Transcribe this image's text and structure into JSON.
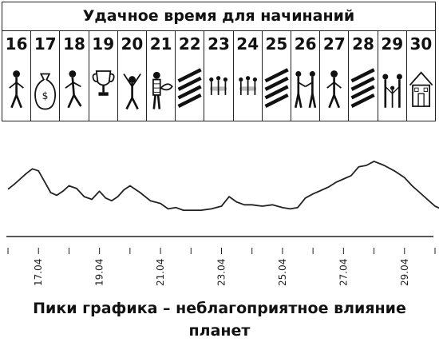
{
  "calendar": {
    "title": "Удачное время для начинаний",
    "days": [
      {
        "num": "16",
        "icon": "person-icon"
      },
      {
        "num": "17",
        "icon": "money-bag-icon"
      },
      {
        "num": "18",
        "icon": "person-walking-icon"
      },
      {
        "num": "19",
        "icon": "trophy-icon"
      },
      {
        "num": "20",
        "icon": "cheering-person-icon"
      },
      {
        "num": "21",
        "icon": "person-with-fish-icon"
      },
      {
        "num": "22",
        "icon": "unfavorable-stripes-icon"
      },
      {
        "num": "23",
        "icon": "group-meeting-icon"
      },
      {
        "num": "24",
        "icon": "group-meeting-icon"
      },
      {
        "num": "25",
        "icon": "unfavorable-stripes-icon"
      },
      {
        "num": "26",
        "icon": "handshake-icon"
      },
      {
        "num": "27",
        "icon": "person-icon"
      },
      {
        "num": "28",
        "icon": "unfavorable-stripes-icon"
      },
      {
        "num": "29",
        "icon": "family-icon"
      },
      {
        "num": "30",
        "icon": "house-icon"
      }
    ]
  },
  "chart_data": {
    "type": "line",
    "title": "",
    "xlabel": "",
    "ylabel": "",
    "xlim": [
      "2024-04-16",
      "2024-04-30"
    ],
    "ylim": [
      0,
      100
    ],
    "grid": false,
    "xticks": [
      "17.04",
      "19.04",
      "21.04",
      "23.04",
      "25.04",
      "27.04",
      "29.04"
    ],
    "series": [
      {
        "x": [
          "2024-04-16",
          "2024-04-16",
          "2024-04-16",
          "2024-04-16",
          "2024-04-16",
          "2024-04-17",
          "2024-04-17",
          "2024-04-17",
          "2024-04-17",
          "2024-04-17",
          "2024-04-18",
          "2024-04-18",
          "2024-04-18",
          "2024-04-18",
          "2024-04-19",
          "2024-04-19",
          "2024-04-19",
          "2024-04-19",
          "2024-04-19",
          "2024-04-20",
          "2024-04-20",
          "2024-04-20",
          "2024-04-21",
          "2024-04-21",
          "2024-04-21",
          "2024-04-21",
          "2024-04-22",
          "2024-04-22",
          "2024-04-22",
          "2024-04-23",
          "2024-04-23",
          "2024-04-23",
          "2024-04-23",
          "2024-04-24",
          "2024-04-24",
          "2024-04-24",
          "2024-04-25",
          "2024-04-25",
          "2024-04-25",
          "2024-04-25",
          "2024-04-26",
          "2024-04-26",
          "2024-04-26",
          "2024-04-26",
          "2024-04-27",
          "2024-04-27",
          "2024-04-27",
          "2024-04-27",
          "2024-04-28",
          "2024-04-28",
          "2024-04-28",
          "2024-04-29",
          "2024-04-29",
          "2024-04-29",
          "2024-04-29",
          "2024-04-30",
          "2024-04-30",
          "2024-04-30",
          "2024-04-30"
        ],
        "y": [
          45,
          52,
          60,
          68,
          75,
          72,
          56,
          40,
          36,
          42,
          50,
          46,
          34,
          30,
          42,
          32,
          28,
          34,
          44,
          50,
          40,
          28,
          24,
          16,
          18,
          14,
          14,
          14,
          16,
          20,
          34,
          26,
          22,
          22,
          20,
          22,
          18,
          16,
          18,
          32,
          38,
          43,
          48,
          55,
          60,
          65,
          78,
          80,
          86,
          80,
          72,
          62,
          50,
          40,
          30,
          20,
          15,
          14,
          16
        ]
      }
    ]
  },
  "caption": "Пики графика – неблагоприятное влияние планет"
}
